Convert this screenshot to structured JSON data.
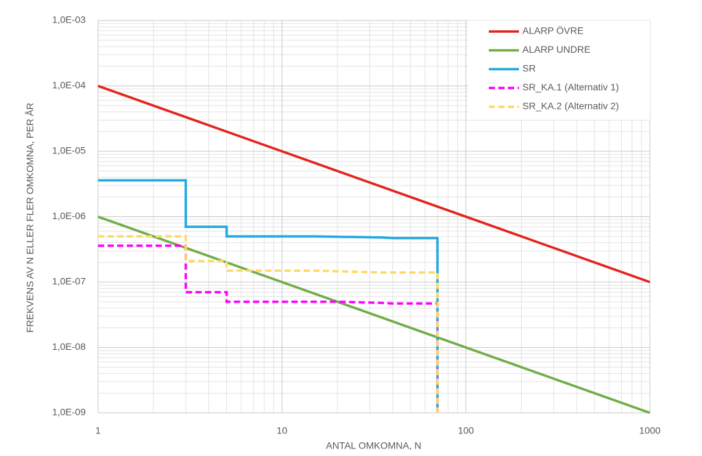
{
  "chart_data": {
    "type": "line",
    "x_label": "ANTAL OMKOMNA, N",
    "y_label": "FREKVENS AV N ELLER FLER OMKOMNA, PER ÅR",
    "xscale": "log",
    "yscale": "log",
    "xlim": [
      1,
      1000
    ],
    "ylim": [
      1e-09,
      0.001
    ],
    "xticks": [
      1,
      10,
      100,
      1000
    ],
    "yticks": [
      {
        "value": 1e-09,
        "label": "1,0E-09"
      },
      {
        "value": 1e-08,
        "label": "1,0E-08"
      },
      {
        "value": 1e-07,
        "label": "1,0E-07"
      },
      {
        "value": 1e-06,
        "label": "1,0E-06"
      },
      {
        "value": 1e-05,
        "label": "1,0E-05"
      },
      {
        "value": 0.0001,
        "label": "1,0E-04"
      },
      {
        "value": 0.001,
        "label": "1,0E-03"
      }
    ],
    "grid": true,
    "minor_grid": true,
    "legend": "top-right",
    "series": [
      {
        "name": "ALARP ÖVRE",
        "color": "#e3231f",
        "dash": false,
        "x": [
          1,
          1000
        ],
        "values": [
          0.0001,
          1e-07
        ]
      },
      {
        "name": "ALARP UNDRE",
        "color": "#70ad47",
        "dash": false,
        "x": [
          1,
          1000
        ],
        "values": [
          1e-06,
          1e-09
        ]
      },
      {
        "name": "SR",
        "color": "#21a9e1",
        "dash": false,
        "x": [
          1,
          3,
          3,
          5,
          5,
          15,
          35,
          40,
          70,
          70
        ],
        "values": [
          3.6e-06,
          3.6e-06,
          7e-07,
          7e-07,
          5e-07,
          5e-07,
          4.8e-07,
          4.7e-07,
          4.7e-07,
          1e-09
        ]
      },
      {
        "name": "SR_KA.1 (Alternativ 1)",
        "color": "#ff00ff",
        "dash": true,
        "x": [
          1,
          3,
          3,
          5,
          5,
          20,
          35,
          40,
          70,
          70
        ],
        "values": [
          3.6e-07,
          3.6e-07,
          7e-08,
          7e-08,
          5e-08,
          5e-08,
          4.8e-08,
          4.7e-08,
          4.7e-08,
          1e-09
        ]
      },
      {
        "name": "SR_KA.2 (Alternativ 2)",
        "color": "#ffd966",
        "dash": true,
        "x": [
          1,
          3,
          3,
          5,
          5,
          15,
          35,
          70,
          70
        ],
        "values": [
          5e-07,
          5e-07,
          2.1e-07,
          2.1e-07,
          1.5e-07,
          1.5e-07,
          1.4e-07,
          1.4e-07,
          1e-09
        ]
      }
    ]
  }
}
